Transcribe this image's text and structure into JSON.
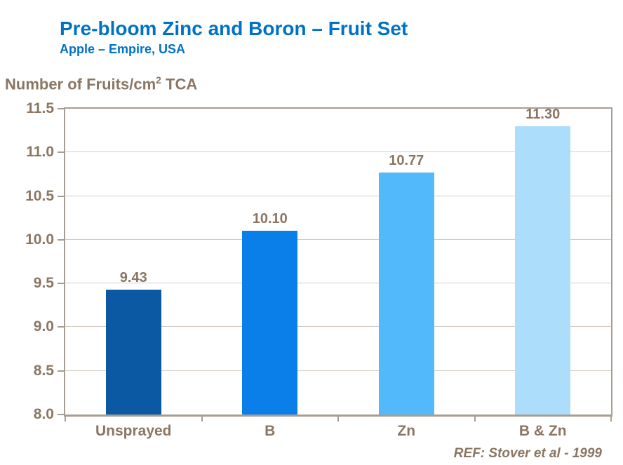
{
  "header": {
    "title": "Pre-bloom Zinc and Boron – Fruit Set",
    "subtitle": "Apple – Empire, USA"
  },
  "y_axis_title": {
    "prefix": "Number of Fruits/cm",
    "superscript": "2",
    "suffix": " TCA"
  },
  "footer": {
    "reference": "REF: Stover et al - 1999"
  },
  "colors": {
    "title_blue": "#0072C6",
    "label_brown": "#8A7662",
    "axis_line": "#A89D92",
    "gridline": "#D3CCC4"
  },
  "chart_data": {
    "type": "bar",
    "title": "Pre-bloom Zinc and Boron – Fruit Set",
    "subtitle": "Apple – Empire, USA",
    "categories": [
      "Unsprayed",
      "B",
      "Zn",
      "B & Zn"
    ],
    "values": [
      9.43,
      10.1,
      10.77,
      11.3
    ],
    "value_labels": [
      "9.43",
      "10.10",
      "10.77",
      "11.30"
    ],
    "bar_colors": [
      "#0B59A2",
      "#0B7FE9",
      "#52BAFA",
      "#ACDEFC"
    ],
    "xlabel": "",
    "ylabel": "Number of Fruits/cm² TCA",
    "ylim": [
      8.0,
      11.5
    ],
    "ytick_step": 0.5,
    "ytick_labels": [
      "8.0",
      "8.5",
      "9.0",
      "9.5",
      "10.0",
      "10.5",
      "11.0",
      "11.5"
    ],
    "grid": true,
    "legend": "none",
    "annotation": "REF: Stover et al - 1999"
  }
}
